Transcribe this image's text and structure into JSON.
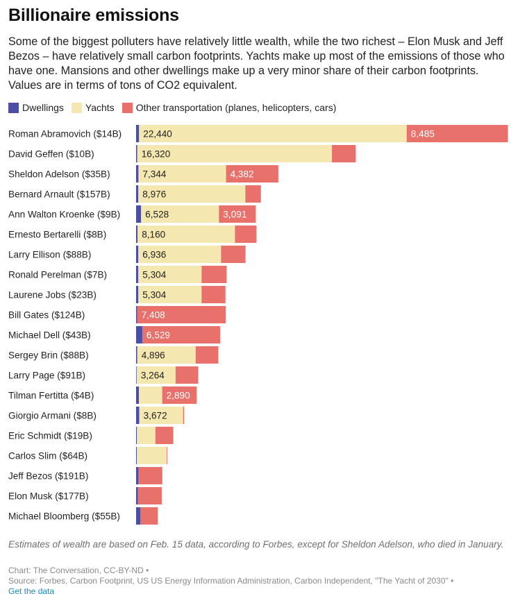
{
  "title": "Billionaire emissions",
  "subtitle": "Some of the biggest polluters have relatively little wealth, while the two richest – Elon Musk and Jeff Bezos – have relatively small carbon footprints. Yachts make up most of the emissions of those who have one. Mansions and other dwellings make up a very minor share of their carbon footprints. Values are in terms of tons of CO2 equivalent.",
  "legend": [
    {
      "label": "Dwellings",
      "color": "#4a4fa3"
    },
    {
      "label": "Yachts",
      "color": "#f5e7b0"
    },
    {
      "label": "Other transportation (planes, helicopters, cars)",
      "color": "#e8716b"
    }
  ],
  "chart_data": {
    "type": "bar",
    "orientation": "horizontal",
    "stacked": true,
    "categories": [
      "Roman Abramovich ($14B)",
      "David Geffen ($10B)",
      "Sheldon Adelson ($35B)",
      "Bernard Arnault ($157B)",
      "Ann Walton Kroenke ($9B)",
      "Ernesto Bertarelli ($8B)",
      "Larry Ellison ($88B)",
      "Ronald Perelman ($7B)",
      "Laurene Jobs ($23B)",
      "Bill Gates ($124B)",
      "Michael Dell ($43B)",
      "Sergey Brin ($88B)",
      "Larry Page ($91B)",
      "Tilman Fertitta ($4B)",
      "Giorgio Armani ($8B)",
      "Eric Schmidt ($19B)",
      "Carlos Slim ($64B)",
      "Jeff Bezos ($191B)",
      "Elon Musk ($177B)",
      "Michael Bloomberg ($55B)"
    ],
    "series": [
      {
        "name": "Dwellings",
        "color": "#4a4fa3",
        "values": [
          250,
          100,
          200,
          190,
          420,
          130,
          190,
          190,
          190,
          100,
          520,
          100,
          50,
          240,
          270,
          70,
          60,
          200,
          150,
          370
        ],
        "labels": [
          "",
          "",
          "",
          "",
          "",
          "",
          "",
          "",
          "",
          "",
          "",
          "",
          "",
          "",
          "",
          "",
          "",
          "",
          "",
          ""
        ]
      },
      {
        "name": "Yachts",
        "color": "#f5e7b0",
        "values": [
          22440,
          16320,
          7344,
          8976,
          6528,
          8160,
          6936,
          5304,
          5304,
          0,
          0,
          4896,
          3264,
          1950,
          3672,
          1550,
          2500,
          0,
          0,
          0
        ],
        "labels": [
          "22,440",
          "16,320",
          "7,344",
          "8,976",
          "6,528",
          "8,160",
          "6,936",
          "5,304",
          "5,304",
          "",
          "",
          "4,896",
          "3,264",
          "",
          "3,672",
          "",
          "",
          "",
          "",
          ""
        ]
      },
      {
        "name": "Other transportation (planes, helicopters, cars)",
        "color": "#e8716b",
        "values": [
          8485,
          2000,
          4382,
          1300,
          3091,
          1800,
          2050,
          2100,
          2000,
          7408,
          6529,
          1900,
          1900,
          2890,
          80,
          1500,
          50,
          2000,
          2000,
          1450
        ],
        "labels": [
          "8,485",
          "",
          "4,382",
          "",
          "3,091",
          "",
          "",
          "",
          "",
          "7,408",
          "6,529",
          "",
          "",
          "2,890",
          "",
          "",
          "",
          "",
          "",
          ""
        ]
      }
    ],
    "xlim": [
      0,
      31200
    ],
    "grid": false,
    "legend_position": "top-left"
  },
  "footer": {
    "note": "Estimates of wealth are based on Feb. 15 data, according to Forbes, except for Sheldon Adelson, who died in January.",
    "credit": "Chart: The Conversation, CC-BY-ND •",
    "source": "Source: Forbes, Carbon Footprint, US US Energy Information Administration, Carbon Independent, \"The Yacht of 2030\" •",
    "data_link": "Get the data"
  }
}
